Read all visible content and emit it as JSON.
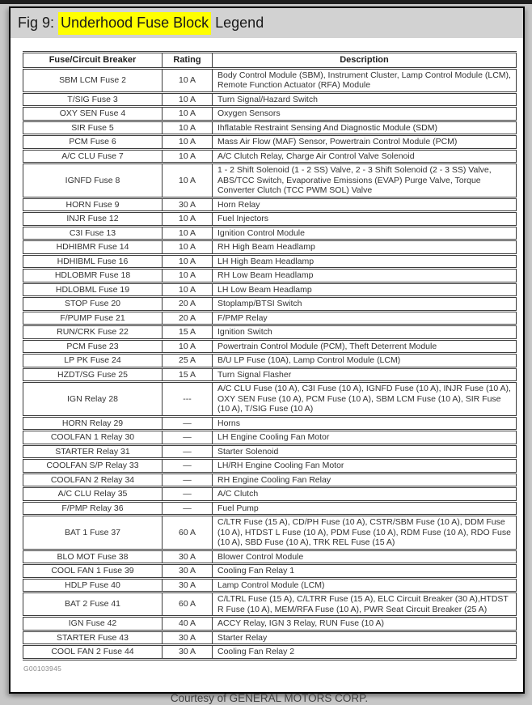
{
  "window": {
    "title_prefix": "Fig 9: ",
    "title_highlight": "Underhood Fuse Block",
    "title_suffix": " Legend"
  },
  "colors": {
    "highlight_yellow": "#ffff00",
    "titlebar_gray": "#d2d2d2",
    "page_border": "#000000",
    "table_border": "#3c3c3c"
  },
  "table": {
    "headers": [
      "Fuse/Circuit Breaker",
      "Rating",
      "Description"
    ],
    "rows": [
      {
        "name": "SBM LCM Fuse 2",
        "rating": "10 A",
        "desc": "Body Control Module (SBM), Instrument Cluster, Lamp Control Module (LCM), Remote Function Actuator (RFA) Module"
      },
      {
        "name": "T/SIG Fuse 3",
        "rating": "10 A",
        "desc": "Turn Signal/Hazard Switch"
      },
      {
        "name": "OXY SEN Fuse 4",
        "rating": "10 A",
        "desc": "Oxygen Sensors"
      },
      {
        "name": "SIR Fuse 5",
        "rating": "10 A",
        "desc": "Ihflatable Restraint Sensing And Diagnostic Module (SDM)"
      },
      {
        "name": "PCM Fuse 6",
        "rating": "10 A",
        "desc": "Mass Air Flow (MAF) Sensor, Powertrain Control Module (PCM)"
      },
      {
        "name": "A/C CLU Fuse 7",
        "rating": "10 A",
        "desc": "A/C Clutch Relay, Charge Air Control Valve Solenoid"
      },
      {
        "name": "IGNFD Fuse 8",
        "rating": "10 A",
        "desc": "1 - 2 Shift Solenoid (1 - 2 SS) Valve, 2 - 3 Shift Solenoid (2 - 3 SS) Valve, ABS/TCC Switch, Evaporative Emissions (EVAP) Purge Valve, Torque Converter Clutch (TCC PWM SOL) Valve"
      },
      {
        "name": "HORN Fuse 9",
        "rating": "30 A",
        "desc": "Horn Relay"
      },
      {
        "name": "INJR Fuse 12",
        "rating": "10 A",
        "desc": "Fuel Injectors"
      },
      {
        "name": "C3I Fuse 13",
        "rating": "10 A",
        "desc": "Ignition Control Module"
      },
      {
        "name": "HDHIBMR Fuse 14",
        "rating": "10 A",
        "desc": "RH High Beam Headlamp"
      },
      {
        "name": "HDHIBML Fuse 16",
        "rating": "10 A",
        "desc": "LH High Beam Headlamp"
      },
      {
        "name": "HDLOBMR Fuse 18",
        "rating": "10 A",
        "desc": "RH Low Beam Headlamp"
      },
      {
        "name": "HDLOBML Fuse 19",
        "rating": "10 A",
        "desc": "LH Low Beam Headlamp"
      },
      {
        "name": "STOP Fuse 20",
        "rating": "20 A",
        "desc": "Stoplamp/BTSI Switch"
      },
      {
        "name": "F/PUMP Fuse 21",
        "rating": "20 A",
        "desc": "F/PMP Relay"
      },
      {
        "name": "RUN/CRK Fuse 22",
        "rating": "15 A",
        "desc": "Ignition Switch"
      },
      {
        "name": "PCM Fuse 23",
        "rating": "10 A",
        "desc": "Powertrain Control Module (PCM), Theft Deterrent Module"
      },
      {
        "name": "LP PK Fuse 24",
        "rating": "25 A",
        "desc": "B/U LP Fuse (10A), Lamp Control Module (LCM)"
      },
      {
        "name": "HZDT/SG Fuse 25",
        "rating": "15 A",
        "desc": "Turn Signal Flasher"
      },
      {
        "name": "IGN Relay 28",
        "rating": "---",
        "desc": "A/C CLU Fuse (10 A), C3I Fuse (10 A), IGNFD Fuse (10 A), INJR Fuse (10 A), OXY SEN Fuse (10 A), PCM Fuse (10 A), SBM LCM Fuse (10 A), SIR Fuse (10 A), T/SIG Fuse (10 A)"
      },
      {
        "name": "HORN Relay 29",
        "rating": "—",
        "desc": "Horns"
      },
      {
        "name": "COOLFAN 1 Relay 30",
        "rating": "—",
        "desc": "LH Engine Cooling Fan Motor"
      },
      {
        "name": "STARTER Relay 31",
        "rating": "—",
        "desc": "Starter Solenoid"
      },
      {
        "name": "COOLFAN S/P Relay 33",
        "rating": "—",
        "desc": "LH/RH Engine Cooling Fan Motor"
      },
      {
        "name": "COOLFAN 2 Relay 34",
        "rating": "—",
        "desc": "RH Engine Cooling Fan Relay"
      },
      {
        "name": "A/C CLU Relay 35",
        "rating": "—",
        "desc": "A/C Clutch"
      },
      {
        "name": "F/PMP Relay 36",
        "rating": "—",
        "desc": "Fuel Pump"
      },
      {
        "name": "BAT 1 Fuse 37",
        "rating": "60 A",
        "desc": "C/LTR Fuse (15 A), CD/PH Fuse (10 A), CSTR/SBM Fuse (10 A), DDM Fuse (10 A), HTDST L Fuse (10 A), PDM Fuse (10 A), RDM Fuse (10 A), RDO Fuse (10 A), SBD Fuse (10 A), TRK REL Fuse (15 A)"
      },
      {
        "name": "BLO MOT Fuse 38",
        "rating": "30 A",
        "desc": "Blower Control Module"
      },
      {
        "name": "COOL FAN 1 Fuse 39",
        "rating": "30 A",
        "desc": "Cooling Fan Relay 1"
      },
      {
        "name": "HDLP Fuse 40",
        "rating": "30 A",
        "desc": "Lamp Control Module (LCM)"
      },
      {
        "name": "BAT 2 Fuse 41",
        "rating": "60 A",
        "desc": "C/LTRL Fuse (15 A), C/LTRR Fuse (15 A), ELC Circuit Breaker (30 A),HTDST R Fuse (10 A), MEM/RFA Fuse (10 A), PWR Seat Circuit Breaker (25 A)"
      },
      {
        "name": "IGN Fuse 42",
        "rating": "40 A",
        "desc": "ACCY Relay, IGN 3 Relay, RUN Fuse (10 A)"
      },
      {
        "name": "STARTER Fuse 43",
        "rating": "30 A",
        "desc": "Starter Relay"
      },
      {
        "name": "COOL FAN 2 Fuse 44",
        "rating": "30 A",
        "desc": "Cooling Fan Relay 2"
      }
    ]
  },
  "footer": {
    "figure_id": "G00103945",
    "courtesy": "Courtesy of GENERAL MOTORS CORP."
  }
}
